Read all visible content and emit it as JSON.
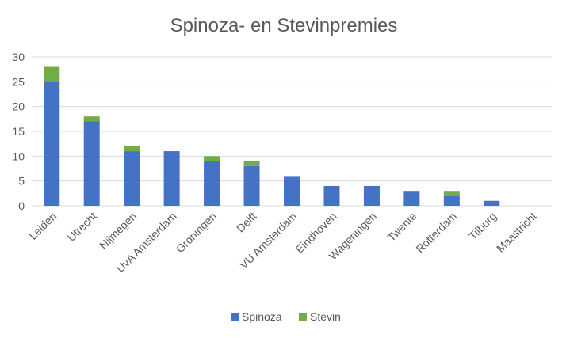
{
  "chart_data": {
    "type": "bar",
    "stacked": true,
    "title": "Spinoza- en Stevinpremies",
    "xlabel": "",
    "ylabel": "",
    "ylim": [
      0,
      30
    ],
    "yticks": [
      0,
      5,
      10,
      15,
      20,
      25,
      30
    ],
    "grid": true,
    "legend_position": "bottom",
    "categories": [
      "Leiden",
      "Utrecht",
      "Nijmegen",
      "UvA Amsterdam",
      "Groningen",
      "Delft",
      "VU Amsterdam",
      "Eindhoven",
      "Wageningen",
      "Twente",
      "Rotterdam",
      "Tilburg",
      "Maastricht"
    ],
    "series": [
      {
        "name": "Spinoza",
        "color": "#4472c4",
        "values": [
          25,
          17,
          11,
          11,
          9,
          8,
          6,
          4,
          4,
          3,
          2,
          1,
          0
        ]
      },
      {
        "name": "Stevin",
        "color": "#70ad47",
        "values": [
          3,
          1,
          1,
          0,
          1,
          1,
          0,
          0,
          0,
          0,
          1,
          0,
          0
        ]
      }
    ]
  }
}
